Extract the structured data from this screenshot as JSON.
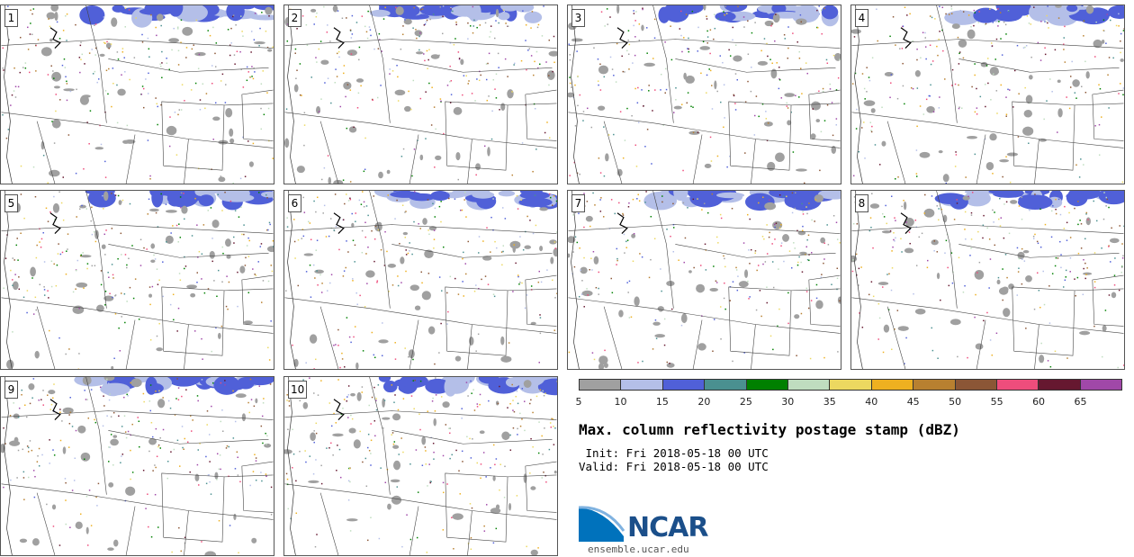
{
  "panels": [
    {
      "label": "1"
    },
    {
      "label": "2"
    },
    {
      "label": "3"
    },
    {
      "label": "4"
    },
    {
      "label": "5"
    },
    {
      "label": "6"
    },
    {
      "label": "7"
    },
    {
      "label": "8"
    },
    {
      "label": "9"
    },
    {
      "label": "10"
    }
  ],
  "colorbar": {
    "colors": [
      "#a0a0a0",
      "#b4bfe8",
      "#5060d8",
      "#4a9090",
      "#008000",
      "#bfddbf",
      "#ecd860",
      "#eeb020",
      "#b88030",
      "#8b5636",
      "#ee4d7c",
      "#661830",
      "#a048a8"
    ],
    "ticks": [
      "5",
      "10",
      "15",
      "20",
      "25",
      "30",
      "35",
      "40",
      "45",
      "50",
      "55",
      "60",
      "65"
    ]
  },
  "title": "Max. column reflectivity postage stamp (dBZ)",
  "init": " Init: Fri 2018-05-18 00 UTC",
  "valid": "Valid: Fri 2018-05-18 00 UTC",
  "logo": {
    "text": "NCAR",
    "url": "ensemble.ucar.edu",
    "brand_color": "#1b4f8a",
    "accent_color": "#0072bc"
  }
}
